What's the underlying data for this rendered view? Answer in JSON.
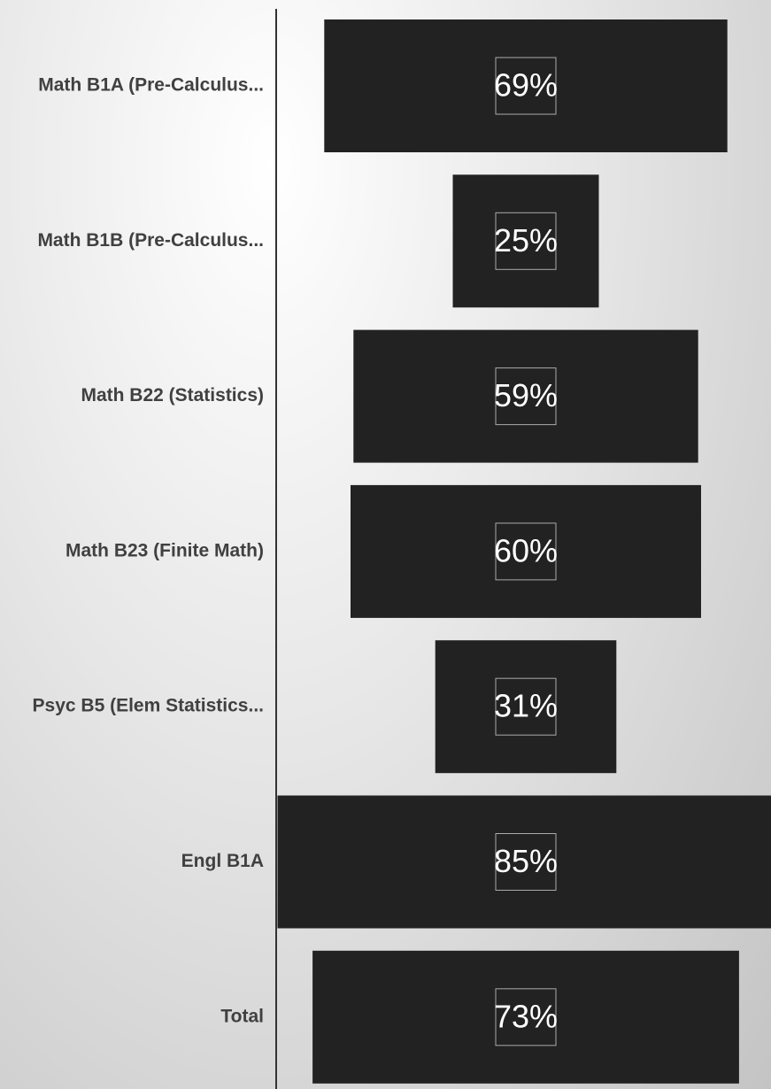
{
  "chart_data": {
    "type": "bar",
    "categories": [
      "Math B1A (Pre-Calculus...",
      "Math B1B (Pre-Calculus...",
      "Math B22 (Statistics)",
      "Math B23 (Finite Math)",
      "Psyc B5 (Elem Statistics...",
      "Engl B1A",
      "Total"
    ],
    "values": [
      69,
      25,
      59,
      60,
      31,
      85,
      73
    ],
    "value_labels": [
      "69%",
      "25%",
      "59%",
      "60%",
      "31%",
      "85%",
      "73%"
    ],
    "color": "#222222"
  }
}
